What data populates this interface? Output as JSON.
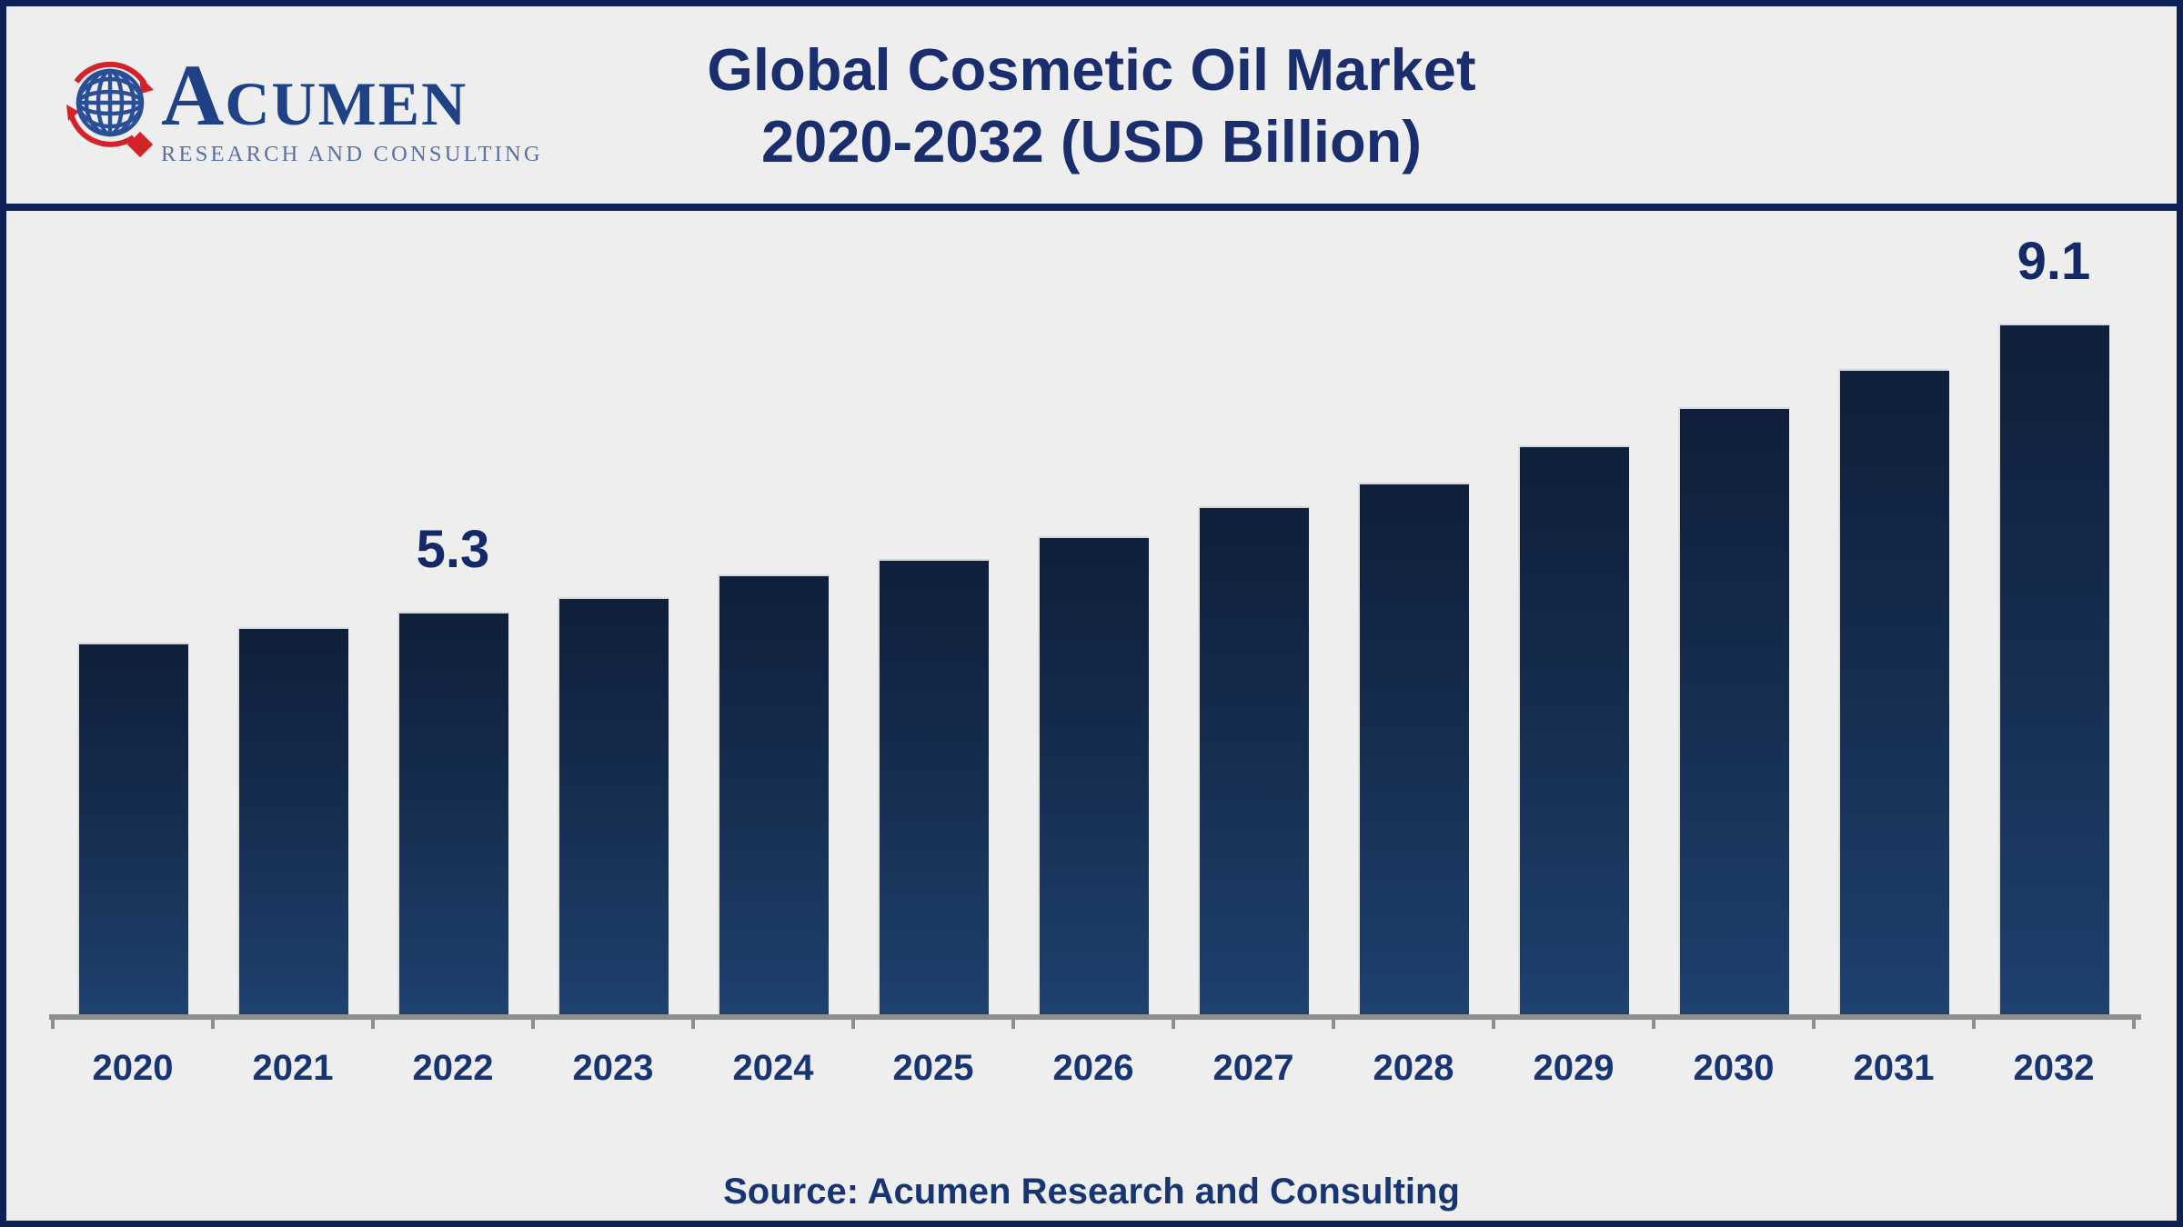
{
  "header": {
    "logo": {
      "initial": "A",
      "rest": "CUMEN",
      "tagline": "RESEARCH AND CONSULTING",
      "globe_icon": "globe-icon",
      "colors": {
        "globe_blue": "#2a4f96",
        "accent_red": "#d2232a",
        "brand_navy": "#1f4287",
        "tagline_blue": "#5671a5"
      }
    },
    "title_line1": "Global Cosmetic Oil Market",
    "title_line2": "2020-2032 (USD Billion)"
  },
  "chart_data": {
    "type": "bar",
    "title": "Global Cosmetic Oil Market 2020-2032 (USD Billion)",
    "xlabel": "",
    "ylabel": "",
    "ylim": [
      0,
      10
    ],
    "grid": false,
    "legend": "none",
    "categories": [
      "2020",
      "2021",
      "2022",
      "2023",
      "2024",
      "2025",
      "2026",
      "2027",
      "2028",
      "2029",
      "2030",
      "2031",
      "2032"
    ],
    "values": [
      4.9,
      5.1,
      5.3,
      5.5,
      5.8,
      6.0,
      6.3,
      6.7,
      7.0,
      7.5,
      8.0,
      8.5,
      9.1
    ],
    "data_labels": [
      "",
      "",
      "5.3",
      "",
      "",
      "",
      "",
      "",
      "",
      "",
      "",
      "",
      "9.1"
    ],
    "colors": {
      "bar_gradient_top": "#101f3a",
      "bar_gradient_bottom": "#1e416e",
      "axis": "#8d9093",
      "labels": "#132a66"
    }
  },
  "footer": {
    "source": "Source: Acumen Research and Consulting"
  }
}
